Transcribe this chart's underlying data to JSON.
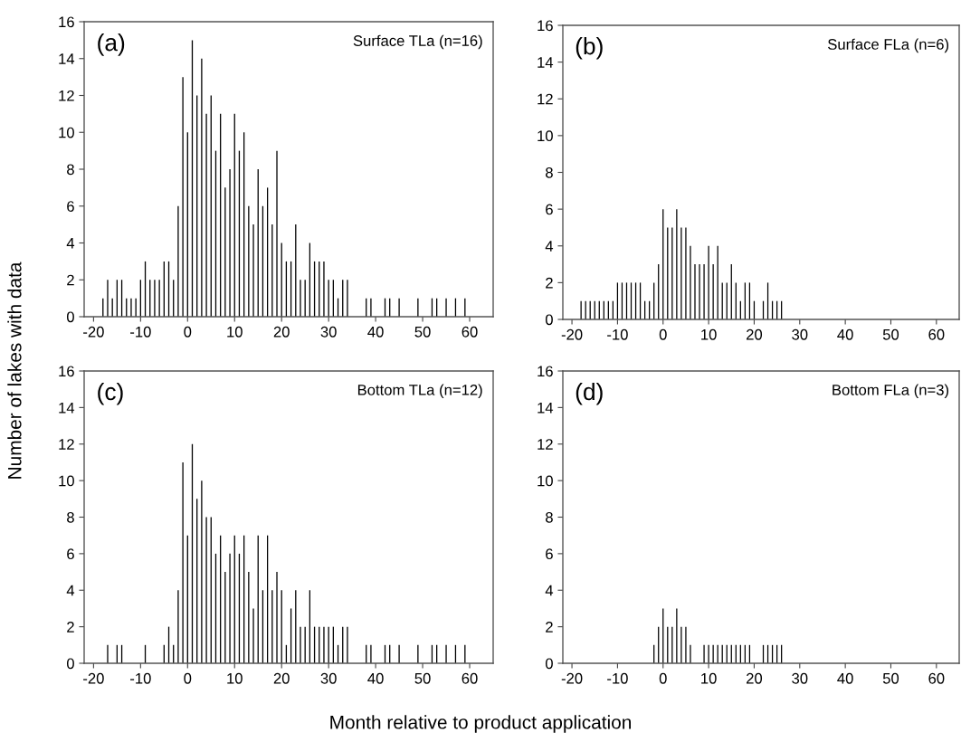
{
  "chart_data": [
    {
      "type": "bar",
      "ylabel": "Number of lakes with data",
      "annotations": [
        "(a)",
        "Surface TLa (n=16)"
      ],
      "color": "#000000",
      "xlim": [
        -22,
        65
      ],
      "xticks": [
        -20,
        -10,
        0,
        10,
        20,
        30,
        40,
        50,
        60
      ],
      "ylim": [
        0,
        16
      ],
      "yticks": [
        0,
        2,
        4,
        6,
        8,
        10,
        12,
        14,
        16
      ],
      "grid": false,
      "legend": false,
      "x": [
        -18,
        -17,
        -16,
        -15,
        -14,
        -13,
        -12,
        -11,
        -10,
        -9,
        -8,
        -7,
        -6,
        -5,
        -4,
        -3,
        -2,
        -1,
        0,
        1,
        2,
        3,
        4,
        5,
        6,
        7,
        8,
        9,
        10,
        11,
        12,
        13,
        14,
        15,
        16,
        17,
        18,
        19,
        20,
        21,
        22,
        23,
        24,
        25,
        26,
        27,
        28,
        29,
        30,
        31,
        32,
        33,
        34,
        38,
        39,
        42,
        43,
        45,
        49,
        52,
        53,
        55,
        57,
        59
      ],
      "values": [
        1,
        2,
        1,
        2,
        2,
        1,
        1,
        1,
        2,
        3,
        2,
        2,
        2,
        3,
        3,
        2,
        6,
        13,
        10,
        15,
        12,
        14,
        11,
        12,
        9,
        11,
        7,
        8,
        11,
        9,
        10,
        6,
        5,
        8,
        6,
        7,
        5,
        9,
        4,
        3,
        3,
        5,
        2,
        2,
        4,
        3,
        3,
        3,
        2,
        2,
        1,
        2,
        2,
        1,
        1,
        1,
        1,
        1,
        1,
        1,
        1,
        1,
        1,
        1
      ]
    },
    {
      "type": "bar",
      "annotations": [
        "(b)",
        "Surface FLa (n=6)"
      ],
      "color": "#000000",
      "xlim": [
        -22,
        65
      ],
      "xticks": [
        -20,
        -10,
        0,
        10,
        20,
        30,
        40,
        50,
        60
      ],
      "ylim": [
        0,
        16
      ],
      "yticks": [
        0,
        2,
        4,
        6,
        8,
        10,
        12,
        14,
        16
      ],
      "grid": false,
      "legend": false,
      "x": [
        -18,
        -17,
        -16,
        -15,
        -14,
        -13,
        -12,
        -11,
        -10,
        -9,
        -8,
        -7,
        -6,
        -5,
        -4,
        -3,
        -2,
        -1,
        0,
        1,
        2,
        3,
        4,
        5,
        6,
        7,
        8,
        9,
        10,
        11,
        12,
        13,
        14,
        15,
        16,
        17,
        18,
        19,
        20,
        22,
        23,
        24,
        25,
        26
      ],
      "values": [
        1,
        1,
        1,
        1,
        1,
        1,
        1,
        1,
        2,
        2,
        2,
        2,
        2,
        2,
        1,
        1,
        2,
        3,
        6,
        5,
        5,
        6,
        5,
        5,
        4,
        3,
        3,
        3,
        4,
        3,
        4,
        2,
        2,
        3,
        2,
        1,
        2,
        2,
        1,
        1,
        2,
        1,
        1,
        1
      ]
    },
    {
      "type": "bar",
      "xlabel": "Month relative to product application",
      "annotations": [
        "(c)",
        "Bottom TLa (n=12)"
      ],
      "color": "#000000",
      "xlim": [
        -22,
        65
      ],
      "xticks": [
        -20,
        -10,
        0,
        10,
        20,
        30,
        40,
        50,
        60
      ],
      "ylim": [
        0,
        16
      ],
      "yticks": [
        0,
        2,
        4,
        6,
        8,
        10,
        12,
        14,
        16
      ],
      "grid": false,
      "legend": false,
      "x": [
        -17,
        -15,
        -14,
        -9,
        -5,
        -4,
        -3,
        -2,
        -1,
        0,
        1,
        2,
        3,
        4,
        5,
        6,
        7,
        8,
        9,
        10,
        11,
        12,
        13,
        14,
        15,
        16,
        17,
        18,
        19,
        20,
        21,
        22,
        23,
        24,
        25,
        26,
        27,
        28,
        29,
        30,
        31,
        32,
        33,
        34,
        38,
        39,
        42,
        43,
        45,
        49,
        52,
        53,
        55,
        57,
        59
      ],
      "values": [
        1,
        1,
        1,
        1,
        1,
        2,
        1,
        4,
        11,
        7,
        12,
        9,
        10,
        8,
        8,
        6,
        7,
        5,
        6,
        7,
        6,
        7,
        5,
        3,
        7,
        4,
        7,
        4,
        5,
        4,
        1,
        3,
        4,
        2,
        2,
        4,
        2,
        2,
        2,
        2,
        2,
        1,
        2,
        2,
        1,
        1,
        1,
        1,
        1,
        1,
        1,
        1,
        1,
        1,
        1
      ]
    },
    {
      "type": "bar",
      "annotations": [
        "(d)",
        "Bottom FLa (n=3)"
      ],
      "color": "#000000",
      "xlim": [
        -22,
        65
      ],
      "xticks": [
        -20,
        -10,
        0,
        10,
        20,
        30,
        40,
        50,
        60
      ],
      "ylim": [
        0,
        16
      ],
      "yticks": [
        0,
        2,
        4,
        6,
        8,
        10,
        12,
        14,
        16
      ],
      "grid": false,
      "legend": false,
      "x": [
        -2,
        -1,
        0,
        1,
        2,
        3,
        4,
        5,
        6,
        9,
        10,
        11,
        12,
        13,
        14,
        15,
        16,
        17,
        18,
        19,
        22,
        23,
        24,
        25,
        26
      ],
      "values": [
        1,
        2,
        3,
        2,
        2,
        3,
        2,
        2,
        1,
        1,
        1,
        1,
        1,
        1,
        1,
        1,
        1,
        1,
        1,
        1,
        1,
        1,
        1,
        1,
        1
      ]
    }
  ]
}
